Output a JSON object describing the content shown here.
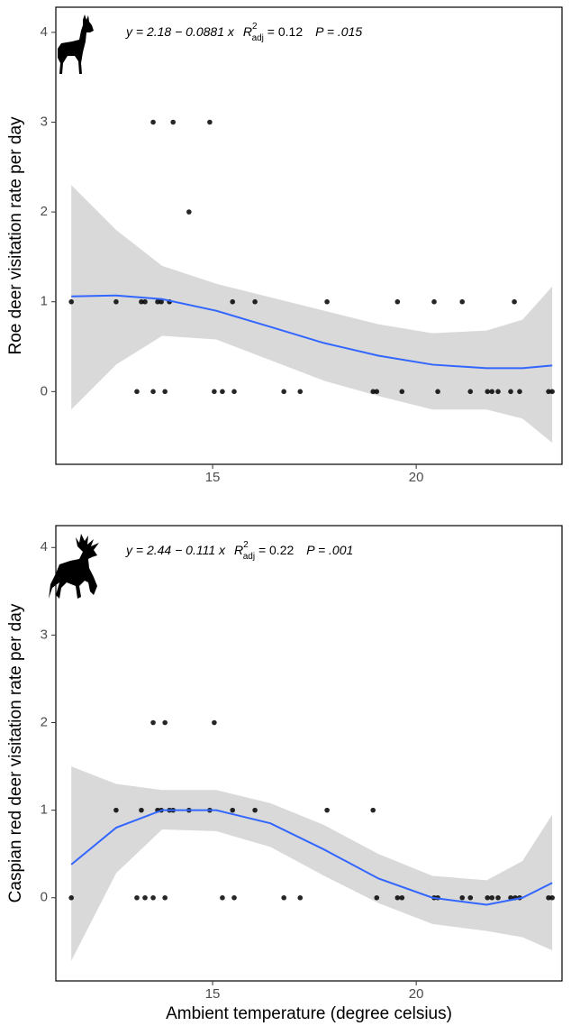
{
  "chart_data": [
    {
      "type": "scatter",
      "y_label": "Roe deer visitation rate per day",
      "annotation": {
        "equation": "y = 2.18 − 0.0881 x",
        "r2_symbol": "R",
        "r2_sup": "2",
        "r2_sub": "adj",
        "r2_value": " = 0.12",
        "p_value": "P = .015"
      },
      "x": [
        11.53,
        12.63,
        13.25,
        13.34,
        13.65,
        13.74,
        13.94,
        15.49,
        16.04,
        17.81,
        19.54,
        20.44,
        21.13,
        22.41,
        13.14,
        13.54,
        13.83,
        15.04,
        15.24,
        15.53,
        16.75,
        17.15,
        18.94,
        19.03,
        19.65,
        20.53,
        21.33,
        21.75,
        21.86,
        22.01,
        22.32,
        22.54,
        23.25,
        23.34,
        13.54,
        14.03,
        14.93,
        14.42
      ],
      "values": [
        1,
        1,
        1,
        1,
        1,
        1,
        1,
        1,
        1,
        1,
        1,
        1,
        1,
        1,
        0,
        0,
        0,
        0,
        0,
        0,
        0,
        0,
        0,
        0,
        0,
        0,
        0,
        0,
        0,
        0,
        0,
        0,
        0,
        0,
        3,
        3,
        3,
        2
      ],
      "color": "#000000",
      "smooth": {
        "color": "#3366ff",
        "band_color": "#d9d9d9",
        "x": [
          11.53,
          12.63,
          13.76,
          15.09,
          16.42,
          17.74,
          19.07,
          20.4,
          21.73,
          22.61,
          23.34
        ],
        "y": [
          1.06,
          1.07,
          1.03,
          0.9,
          0.72,
          0.54,
          0.4,
          0.3,
          0.26,
          0.26,
          0.29
        ],
        "upper": [
          2.3,
          1.8,
          1.4,
          1.2,
          1.05,
          0.9,
          0.75,
          0.65,
          0.68,
          0.8,
          1.17
        ],
        "lower": [
          -0.2,
          0.3,
          0.62,
          0.58,
          0.35,
          0.12,
          -0.05,
          -0.2,
          -0.2,
          -0.3,
          -0.57
        ]
      },
      "xlim": [
        11.15,
        23.58
      ],
      "xticks": [
        15,
        20
      ],
      "ylim": [
        -0.81,
        4.28
      ],
      "yticks": [
        0,
        1,
        2,
        3,
        4
      ]
    },
    {
      "type": "scatter",
      "y_label": "Caspian red deer visitation rate per day",
      "x_label": "Ambient temperature (degree celsius)",
      "annotation": {
        "equation": "y = 2.44 − 0.111 x",
        "r2_symbol": "R",
        "r2_sup": "2",
        "r2_sub": "adj",
        "r2_value": " = 0.22",
        "p_value": "P = .001"
      },
      "x": [
        11.53,
        13.14,
        13.34,
        13.54,
        13.83,
        15.24,
        15.53,
        16.75,
        17.15,
        19.03,
        19.54,
        19.65,
        20.44,
        20.53,
        21.13,
        21.33,
        21.75,
        21.86,
        22.01,
        22.32,
        22.43,
        22.54,
        23.25,
        23.34,
        12.63,
        13.25,
        13.65,
        13.74,
        13.94,
        14.03,
        14.42,
        14.93,
        15.49,
        16.04,
        17.81,
        18.94,
        13.54,
        13.83,
        15.04
      ],
      "values": [
        0,
        0,
        0,
        0,
        0,
        0,
        0,
        0,
        0,
        0,
        0,
        0,
        0,
        0,
        0,
        0,
        0,
        0,
        0,
        0,
        0,
        0,
        0,
        0,
        1,
        1,
        1,
        1,
        1,
        1,
        1,
        1,
        1,
        1,
        1,
        1,
        2,
        2,
        2
      ],
      "color": "#000000",
      "smooth": {
        "color": "#3366ff",
        "band_color": "#d9d9d9",
        "x": [
          11.53,
          12.63,
          13.76,
          15.09,
          16.42,
          17.74,
          19.07,
          20.4,
          21.73,
          22.61,
          23.34
        ],
        "y": [
          0.38,
          0.8,
          1.0,
          1.0,
          0.85,
          0.55,
          0.22,
          0.0,
          -0.08,
          0.0,
          0.17
        ],
        "upper": [
          1.5,
          1.3,
          1.23,
          1.23,
          1.08,
          0.83,
          0.5,
          0.25,
          0.2,
          0.42,
          0.95
        ],
        "lower": [
          -0.72,
          0.28,
          0.78,
          0.76,
          0.58,
          0.25,
          -0.06,
          -0.3,
          -0.38,
          -0.45,
          -0.6
        ]
      },
      "xlim": [
        11.15,
        23.58
      ],
      "xticks": [
        15,
        20
      ],
      "ylim": [
        -0.95,
        4.25
      ],
      "yticks": [
        0,
        1,
        2,
        3,
        4
      ]
    }
  ]
}
